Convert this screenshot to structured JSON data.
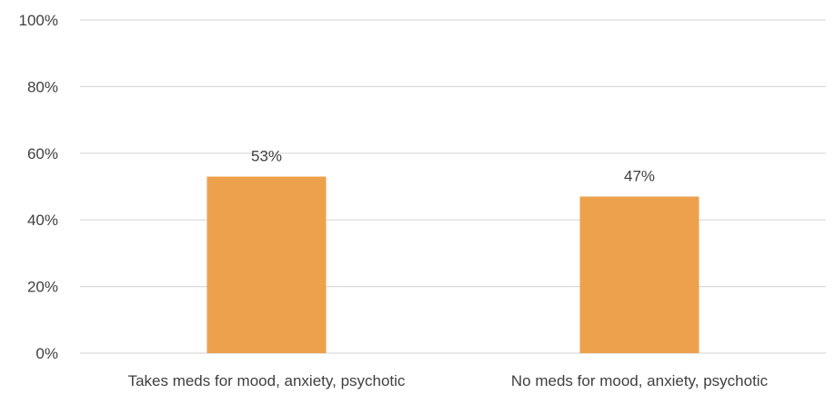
{
  "chart_data": {
    "type": "bar",
    "categories": [
      "Takes meds for mood, anxiety, psychotic",
      "No meds for mood, anxiety, psychotic"
    ],
    "values": [
      53,
      47
    ],
    "data_labels": [
      "53%",
      "47%"
    ],
    "ylim": [
      0,
      100
    ],
    "yticks": [
      0,
      20,
      40,
      60,
      80,
      100
    ],
    "ytick_labels": [
      "0%",
      "20%",
      "40%",
      "60%",
      "80%",
      "100%"
    ],
    "grid": true,
    "legend": "none",
    "bar_color": "#eda14d",
    "grid_color": "#d9d9d9",
    "text_color": "#404040"
  }
}
